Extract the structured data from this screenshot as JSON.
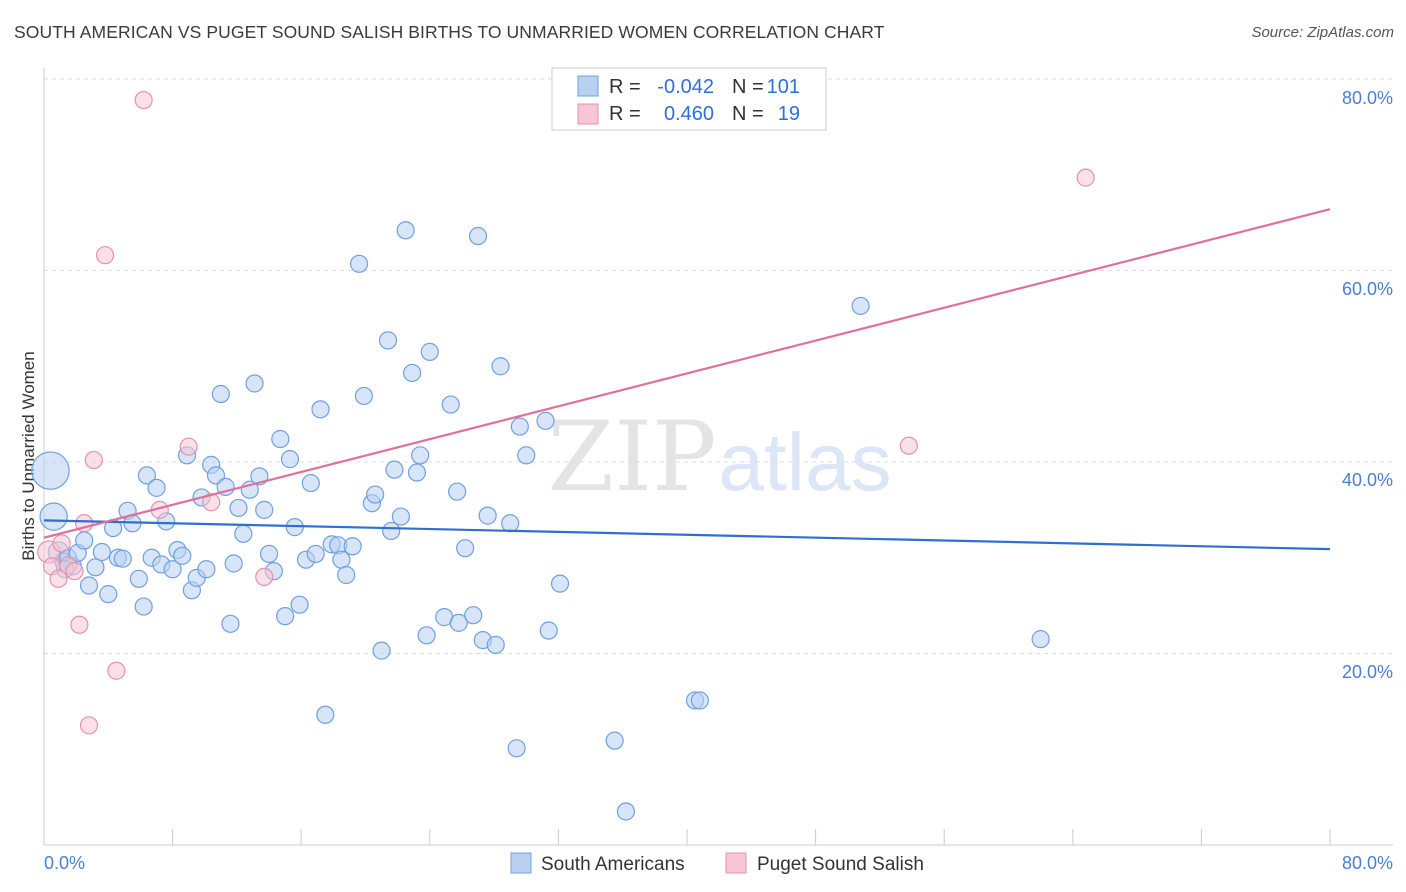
{
  "title": "SOUTH AMERICAN VS PUGET SOUND SALISH BIRTHS TO UNMARRIED WOMEN CORRELATION CHART",
  "source": "Source: ZipAtlas.com",
  "watermark": {
    "zip": "ZIP",
    "atlas": "atlas"
  },
  "colors": {
    "blue_fill": "#b8d0f2",
    "blue_stroke": "#6fa0e0",
    "blue_line": "#2e6fd0",
    "pink_fill": "#f7c6d4",
    "pink_stroke": "#e592ad",
    "pink_line": "#e0709a",
    "axis_text": "#4a7fcf",
    "grid": "#dddddd"
  },
  "legend": {
    "rows": [
      {
        "r_label": "R =",
        "r_value": "-0.042",
        "n_label": "N =",
        "n_value": "101"
      },
      {
        "r_label": "R =",
        "r_value": "0.460",
        "n_label": "N =",
        "n_value": "19"
      }
    ]
  },
  "bottom_legend": [
    "South Americans",
    "Puget Sound Salish"
  ],
  "chart_data": {
    "type": "scatter",
    "title": "SOUTH AMERICAN VS PUGET SOUND SALISH BIRTHS TO UNMARRIED WOMEN CORRELATION CHART",
    "xlabel": "",
    "ylabel": "Births to Unmarried Women",
    "xlim": [
      0,
      80
    ],
    "ylim": [
      0,
      80
    ],
    "x_tick_labels": [
      "0.0%",
      "80.0%"
    ],
    "y_tick_labels": [
      "20.0%",
      "40.0%",
      "60.0%",
      "80.0%"
    ],
    "y_ticks": [
      20,
      40,
      60,
      80
    ],
    "series": [
      {
        "name": "South Americans",
        "color": "blue",
        "trend": {
          "x": [
            0,
            80
          ],
          "y": [
            33.9,
            30.9
          ]
        },
        "points": [
          {
            "x": 0.4,
            "y": 39.1,
            "s": 2.2
          },
          {
            "x": 0.6,
            "y": 34.3,
            "s": 1.6
          },
          {
            "x": 0.9,
            "y": 30.6,
            "s": 1.2
          },
          {
            "x": 1.2,
            "y": 29.6,
            "s": 1
          },
          {
            "x": 1.5,
            "y": 30.0,
            "s": 1
          },
          {
            "x": 1.8,
            "y": 29.1,
            "s": 1
          },
          {
            "x": 2.1,
            "y": 30.5,
            "s": 1
          },
          {
            "x": 2.5,
            "y": 31.8,
            "s": 1
          },
          {
            "x": 2.8,
            "y": 27.1,
            "s": 1
          },
          {
            "x": 3.2,
            "y": 29.0,
            "s": 1
          },
          {
            "x": 3.6,
            "y": 30.6,
            "s": 1
          },
          {
            "x": 4.0,
            "y": 26.2,
            "s": 1
          },
          {
            "x": 4.3,
            "y": 33.1,
            "s": 1
          },
          {
            "x": 4.6,
            "y": 30.0,
            "s": 1
          },
          {
            "x": 4.9,
            "y": 29.9,
            "s": 1
          },
          {
            "x": 5.2,
            "y": 34.9,
            "s": 1
          },
          {
            "x": 5.5,
            "y": 33.6,
            "s": 1
          },
          {
            "x": 5.9,
            "y": 27.8,
            "s": 1
          },
          {
            "x": 6.2,
            "y": 24.9,
            "s": 1
          },
          {
            "x": 6.4,
            "y": 38.6,
            "s": 1
          },
          {
            "x": 6.7,
            "y": 30.0,
            "s": 1
          },
          {
            "x": 7.0,
            "y": 37.3,
            "s": 1
          },
          {
            "x": 7.3,
            "y": 29.3,
            "s": 1
          },
          {
            "x": 7.6,
            "y": 33.8,
            "s": 1
          },
          {
            "x": 8.0,
            "y": 28.8,
            "s": 1
          },
          {
            "x": 8.3,
            "y": 30.8,
            "s": 1
          },
          {
            "x": 8.6,
            "y": 30.2,
            "s": 1
          },
          {
            "x": 8.9,
            "y": 40.7,
            "s": 1
          },
          {
            "x": 9.2,
            "y": 26.6,
            "s": 1
          },
          {
            "x": 9.5,
            "y": 27.9,
            "s": 1
          },
          {
            "x": 9.8,
            "y": 36.3,
            "s": 1
          },
          {
            "x": 10.1,
            "y": 28.8,
            "s": 1
          },
          {
            "x": 10.4,
            "y": 39.7,
            "s": 1
          },
          {
            "x": 10.7,
            "y": 38.6,
            "s": 1
          },
          {
            "x": 11.0,
            "y": 47.1,
            "s": 1
          },
          {
            "x": 11.3,
            "y": 37.4,
            "s": 1
          },
          {
            "x": 11.6,
            "y": 23.1,
            "s": 1
          },
          {
            "x": 11.8,
            "y": 29.4,
            "s": 1
          },
          {
            "x": 12.1,
            "y": 35.2,
            "s": 1
          },
          {
            "x": 12.4,
            "y": 32.5,
            "s": 1
          },
          {
            "x": 12.8,
            "y": 37.1,
            "s": 1
          },
          {
            "x": 13.1,
            "y": 48.2,
            "s": 1
          },
          {
            "x": 13.4,
            "y": 38.5,
            "s": 1
          },
          {
            "x": 13.7,
            "y": 35.0,
            "s": 1
          },
          {
            "x": 14.0,
            "y": 30.4,
            "s": 1
          },
          {
            "x": 14.3,
            "y": 28.6,
            "s": 1
          },
          {
            "x": 14.7,
            "y": 42.4,
            "s": 1
          },
          {
            "x": 15.0,
            "y": 23.9,
            "s": 1
          },
          {
            "x": 15.3,
            "y": 40.3,
            "s": 1
          },
          {
            "x": 15.6,
            "y": 33.2,
            "s": 1
          },
          {
            "x": 15.9,
            "y": 25.1,
            "s": 1
          },
          {
            "x": 16.3,
            "y": 29.8,
            "s": 1
          },
          {
            "x": 16.6,
            "y": 37.8,
            "s": 1
          },
          {
            "x": 16.9,
            "y": 30.4,
            "s": 1
          },
          {
            "x": 17.2,
            "y": 45.5,
            "s": 1
          },
          {
            "x": 17.5,
            "y": 13.6,
            "s": 1
          },
          {
            "x": 17.9,
            "y": 31.4,
            "s": 1
          },
          {
            "x": 18.3,
            "y": 31.3,
            "s": 1
          },
          {
            "x": 18.5,
            "y": 29.8,
            "s": 1
          },
          {
            "x": 18.8,
            "y": 28.2,
            "s": 1
          },
          {
            "x": 19.2,
            "y": 31.2,
            "s": 1
          },
          {
            "x": 19.6,
            "y": 60.7,
            "s": 1
          },
          {
            "x": 19.9,
            "y": 46.9,
            "s": 1
          },
          {
            "x": 20.4,
            "y": 35.7,
            "s": 1
          },
          {
            "x": 20.6,
            "y": 36.6,
            "s": 1
          },
          {
            "x": 21.0,
            "y": 20.3,
            "s": 1
          },
          {
            "x": 21.4,
            "y": 52.7,
            "s": 1
          },
          {
            "x": 21.6,
            "y": 32.8,
            "s": 1
          },
          {
            "x": 21.8,
            "y": 39.2,
            "s": 1
          },
          {
            "x": 22.2,
            "y": 34.3,
            "s": 1
          },
          {
            "x": 22.5,
            "y": 64.2,
            "s": 1
          },
          {
            "x": 22.9,
            "y": 49.3,
            "s": 1
          },
          {
            "x": 23.2,
            "y": 38.9,
            "s": 1
          },
          {
            "x": 23.4,
            "y": 40.7,
            "s": 1
          },
          {
            "x": 23.8,
            "y": 21.9,
            "s": 1
          },
          {
            "x": 24.0,
            "y": 51.5,
            "s": 1
          },
          {
            "x": 24.9,
            "y": 23.8,
            "s": 1
          },
          {
            "x": 25.3,
            "y": 46.0,
            "s": 1
          },
          {
            "x": 25.7,
            "y": 36.9,
            "s": 1
          },
          {
            "x": 25.8,
            "y": 23.2,
            "s": 1
          },
          {
            "x": 26.2,
            "y": 31.0,
            "s": 1
          },
          {
            "x": 26.7,
            "y": 24.0,
            "s": 1
          },
          {
            "x": 27.0,
            "y": 63.6,
            "s": 1
          },
          {
            "x": 27.3,
            "y": 21.4,
            "s": 1
          },
          {
            "x": 27.6,
            "y": 34.4,
            "s": 1
          },
          {
            "x": 28.1,
            "y": 20.9,
            "s": 1
          },
          {
            "x": 28.4,
            "y": 50.0,
            "s": 1
          },
          {
            "x": 29.0,
            "y": 33.6,
            "s": 1
          },
          {
            "x": 29.4,
            "y": 10.1,
            "s": 1
          },
          {
            "x": 29.6,
            "y": 43.7,
            "s": 1
          },
          {
            "x": 30.0,
            "y": 40.7,
            "s": 1
          },
          {
            "x": 31.2,
            "y": 44.3,
            "s": 1
          },
          {
            "x": 31.4,
            "y": 22.4,
            "s": 1
          },
          {
            "x": 32.1,
            "y": 27.3,
            "s": 1
          },
          {
            "x": 35.5,
            "y": 10.9,
            "s": 1
          },
          {
            "x": 36.2,
            "y": 3.5,
            "s": 1
          },
          {
            "x": 40.5,
            "y": 15.1,
            "s": 1
          },
          {
            "x": 40.8,
            "y": 15.1,
            "s": 1
          },
          {
            "x": 50.8,
            "y": 56.3,
            "s": 1
          },
          {
            "x": 62.0,
            "y": 21.5,
            "s": 1
          },
          {
            "x": 1.3,
            "y": 28.8,
            "s": 1
          }
        ]
      },
      {
        "name": "Puget Sound Salish",
        "color": "pink",
        "trend": {
          "x": [
            0,
            80
          ],
          "y": [
            32.1,
            66.4
          ]
        },
        "points": [
          {
            "x": 0.3,
            "y": 30.6,
            "s": 1.3
          },
          {
            "x": 0.5,
            "y": 29.1,
            "s": 1
          },
          {
            "x": 0.9,
            "y": 27.8,
            "s": 1
          },
          {
            "x": 1.1,
            "y": 31.5,
            "s": 1
          },
          {
            "x": 1.5,
            "y": 29.2,
            "s": 1
          },
          {
            "x": 1.9,
            "y": 28.6,
            "s": 1
          },
          {
            "x": 2.2,
            "y": 23.0,
            "s": 1
          },
          {
            "x": 2.5,
            "y": 33.6,
            "s": 1
          },
          {
            "x": 2.8,
            "y": 12.5,
            "s": 1
          },
          {
            "x": 3.1,
            "y": 40.2,
            "s": 1
          },
          {
            "x": 3.8,
            "y": 61.6,
            "s": 1
          },
          {
            "x": 4.5,
            "y": 18.2,
            "s": 1
          },
          {
            "x": 6.2,
            "y": 77.8,
            "s": 1
          },
          {
            "x": 7.2,
            "y": 35.0,
            "s": 1
          },
          {
            "x": 9.0,
            "y": 41.6,
            "s": 1
          },
          {
            "x": 10.4,
            "y": 35.8,
            "s": 1
          },
          {
            "x": 13.7,
            "y": 28.0,
            "s": 1
          },
          {
            "x": 53.8,
            "y": 41.7,
            "s": 1
          },
          {
            "x": 64.8,
            "y": 69.7,
            "s": 1
          }
        ]
      }
    ]
  }
}
